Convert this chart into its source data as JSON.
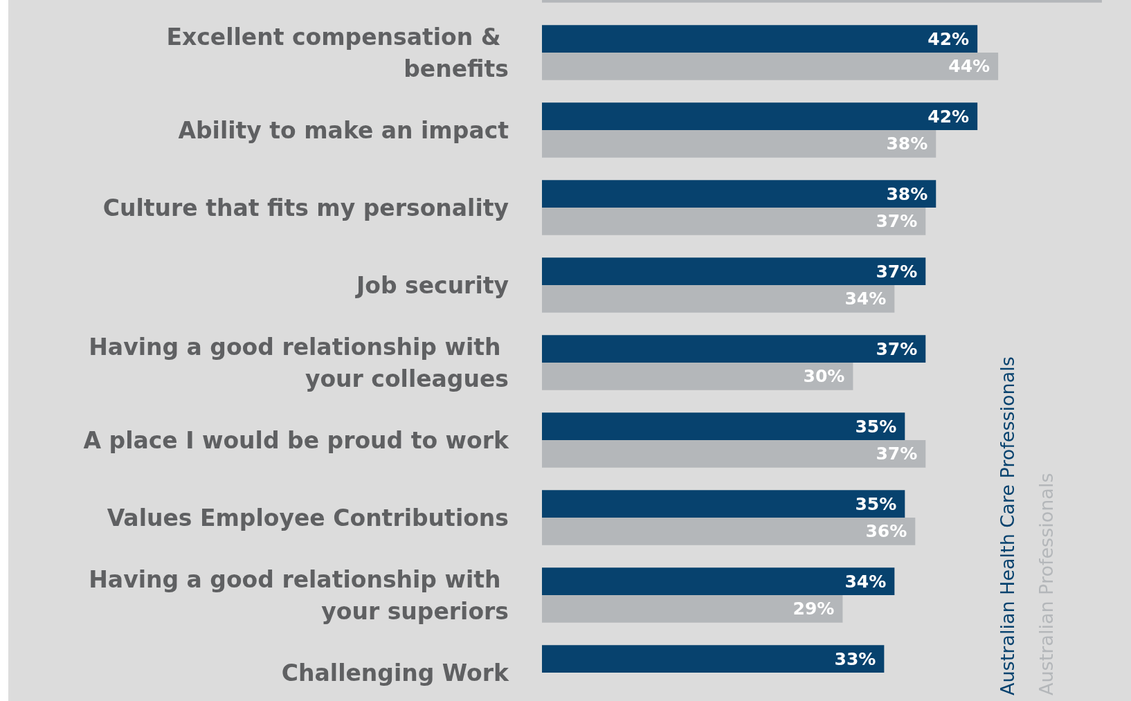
{
  "chart_data": {
    "type": "bar",
    "orientation": "horizontal",
    "categories": [
      null,
      "Excellent compensation & benefits",
      "Ability to make an impact",
      "Culture that fits my personality",
      "Job security",
      "Having a good relationship with your colleagues",
      "A place I would be proud to work",
      "Values Employee Contributions",
      "Having a good relationship with your superiors",
      "Challenging Work"
    ],
    "series": [
      {
        "name": "Australian Health Care Professionals",
        "color": "#07426e",
        "values": [
          null,
          42,
          42,
          38,
          37,
          37,
          35,
          35,
          34,
          33
        ],
        "value_labels": [
          null,
          "42%",
          "42%",
          "38%",
          "37%",
          "37%",
          "35%",
          "35%",
          "34%",
          "33%"
        ]
      },
      {
        "name": "Australian Professionals",
        "color": "#b4b7ba",
        "values": [
          54,
          44,
          38,
          37,
          34,
          30,
          37,
          36,
          29,
          null
        ],
        "value_labels": [
          null,
          "44%",
          "38%",
          "37%",
          "34%",
          "30%",
          "37%",
          "36%",
          "29%",
          null
        ]
      }
    ],
    "legend": "right",
    "grid": false
  }
}
